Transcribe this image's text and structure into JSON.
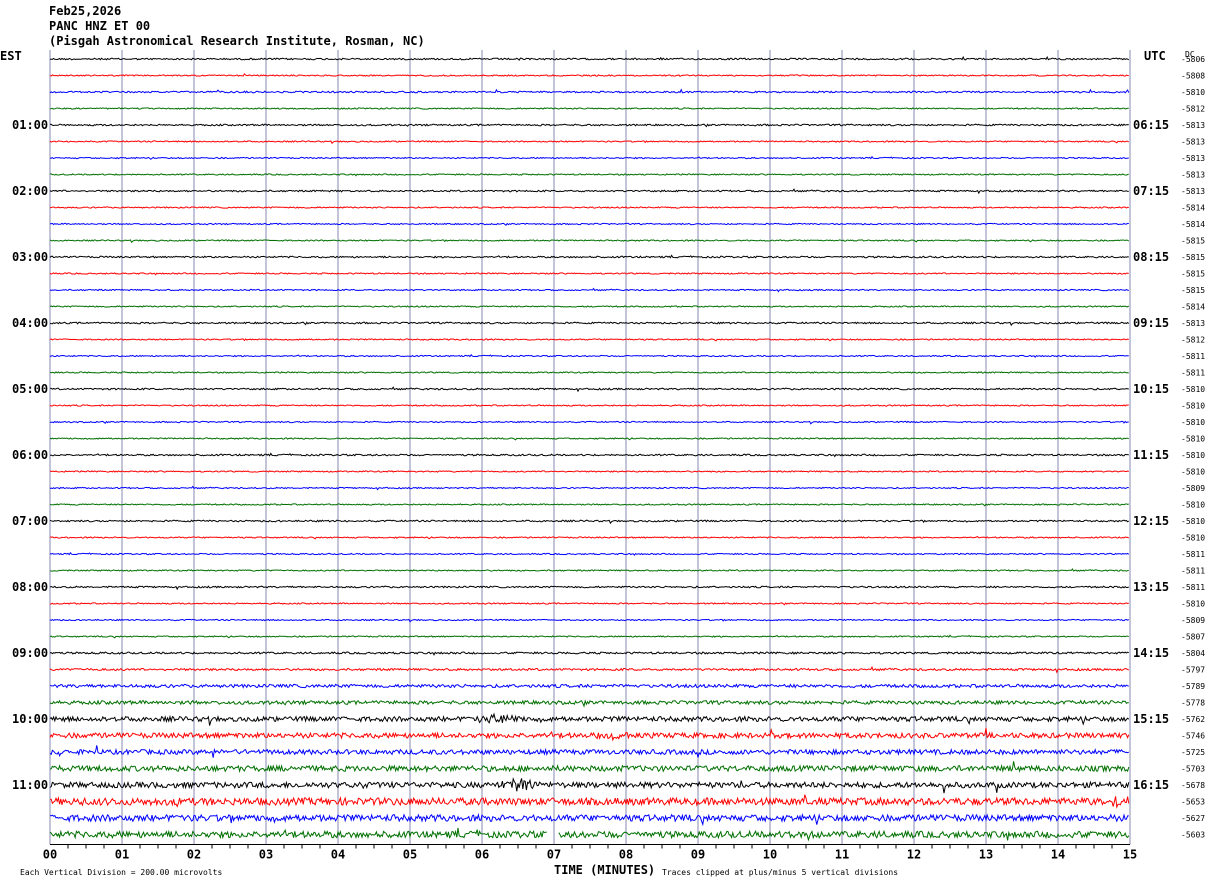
{
  "header": {
    "date": "Feb25,2026",
    "station": "PANC HNZ ET 00",
    "location": "(Pisgah Astronomical Research Institute, Rosman, NC)"
  },
  "left_tz": "EST",
  "right_tz": "UTC",
  "dc_header": "DC",
  "footer": {
    "scale_note": "Each Vertical Division =  200.00 microvolts",
    "xlabel": "TIME (MINUTES)",
    "clip_note": "Traces clipped at plus/minus 5 vertical divisions"
  },
  "colors": [
    "#000000",
    "#ff0000",
    "#0000ff",
    "#007000"
  ],
  "chart_data": {
    "type": "line",
    "title": "PANC HNZ ET 00",
    "xlabel": "TIME (MINUTES)",
    "xlim": [
      0,
      15
    ],
    "x_ticks": [
      "00",
      "01",
      "02",
      "03",
      "04",
      "05",
      "06",
      "07",
      "08",
      "09",
      "10",
      "11",
      "12",
      "13",
      "14",
      "15"
    ],
    "rows_per_hour": 4,
    "row_minutes": 15,
    "left_hour_labels": [
      "01:00",
      "02:00",
      "03:00",
      "04:00",
      "05:00",
      "06:00",
      "07:00",
      "08:00",
      "09:00",
      "10:00",
      "11:00"
    ],
    "right_hour_labels": [
      "06:15",
      "07:15",
      "08:15",
      "09:15",
      "10:15",
      "11:15",
      "12:15",
      "13:15",
      "14:15",
      "15:15",
      "16:15"
    ],
    "dc_offsets": [
      -5806,
      -5808,
      -5810,
      -5812,
      -5813,
      -5813,
      -5813,
      -5813,
      -5813,
      -5814,
      -5814,
      -5815,
      -5815,
      -5815,
      -5815,
      -5814,
      -5813,
      -5812,
      -5811,
      -5811,
      -5810,
      -5810,
      -5810,
      -5810,
      -5810,
      -5810,
      -5809,
      -5810,
      -5810,
      -5810,
      -5811,
      -5811,
      -5811,
      -5810,
      -5809,
      -5807,
      -5804,
      -5797,
      -5789,
      -5778,
      -5762,
      -5746,
      -5725,
      -5703,
      -5678,
      -5653,
      -5627,
      -5603
    ],
    "trace_noise_level": [
      1,
      0.8,
      1,
      0.8,
      1,
      0.8,
      0.8,
      0.8,
      1,
      0.8,
      0.8,
      0.8,
      1,
      0.8,
      0.8,
      0.8,
      1,
      0.8,
      0.8,
      0.8,
      1,
      0.8,
      0.8,
      0.8,
      1,
      0.8,
      0.8,
      0.8,
      1,
      0.8,
      0.8,
      0.8,
      1,
      0.8,
      0.8,
      0.8,
      1.2,
      1.3,
      2,
      2.2,
      3,
      3.2,
      3,
      3.5,
      3.5,
      4.5,
      4,
      4
    ],
    "events": [
      {
        "row": 40,
        "minute": 6.2,
        "amp": 10
      },
      {
        "row": 41,
        "minute": 7.9,
        "amp": 10
      },
      {
        "row": 44,
        "minute": 6.55,
        "amp": 14
      },
      {
        "row": 45,
        "minute": 14.9,
        "amp": 12
      },
      {
        "row": 47,
        "minute": 10.6,
        "amp": 7
      }
    ],
    "data_gap": {
      "row": 47,
      "start_minute": 6.9,
      "end_minute": 7.05
    }
  }
}
